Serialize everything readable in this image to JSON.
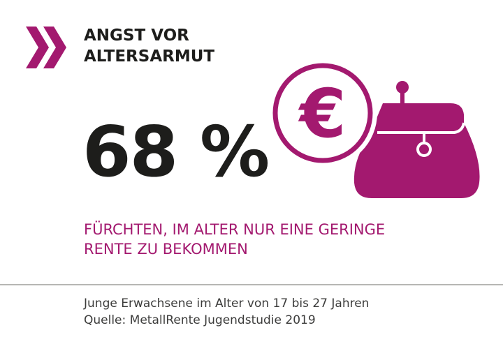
{
  "header": {
    "title_lines": [
      "ANGST VOR",
      "ALTERSARMUT"
    ]
  },
  "stat": {
    "value": "68 %",
    "icon_symbol": "€"
  },
  "description_lines": [
    "FÜRCHTEN, IM ALTER NUR EINE GERINGE",
    "RENTE ZU BEKOMMEN"
  ],
  "footer_lines": [
    "Junge Erwachsene im Alter von 17 bis 27 Jahren",
    "Quelle: MetallRente Jugendstudie 2019"
  ]
}
